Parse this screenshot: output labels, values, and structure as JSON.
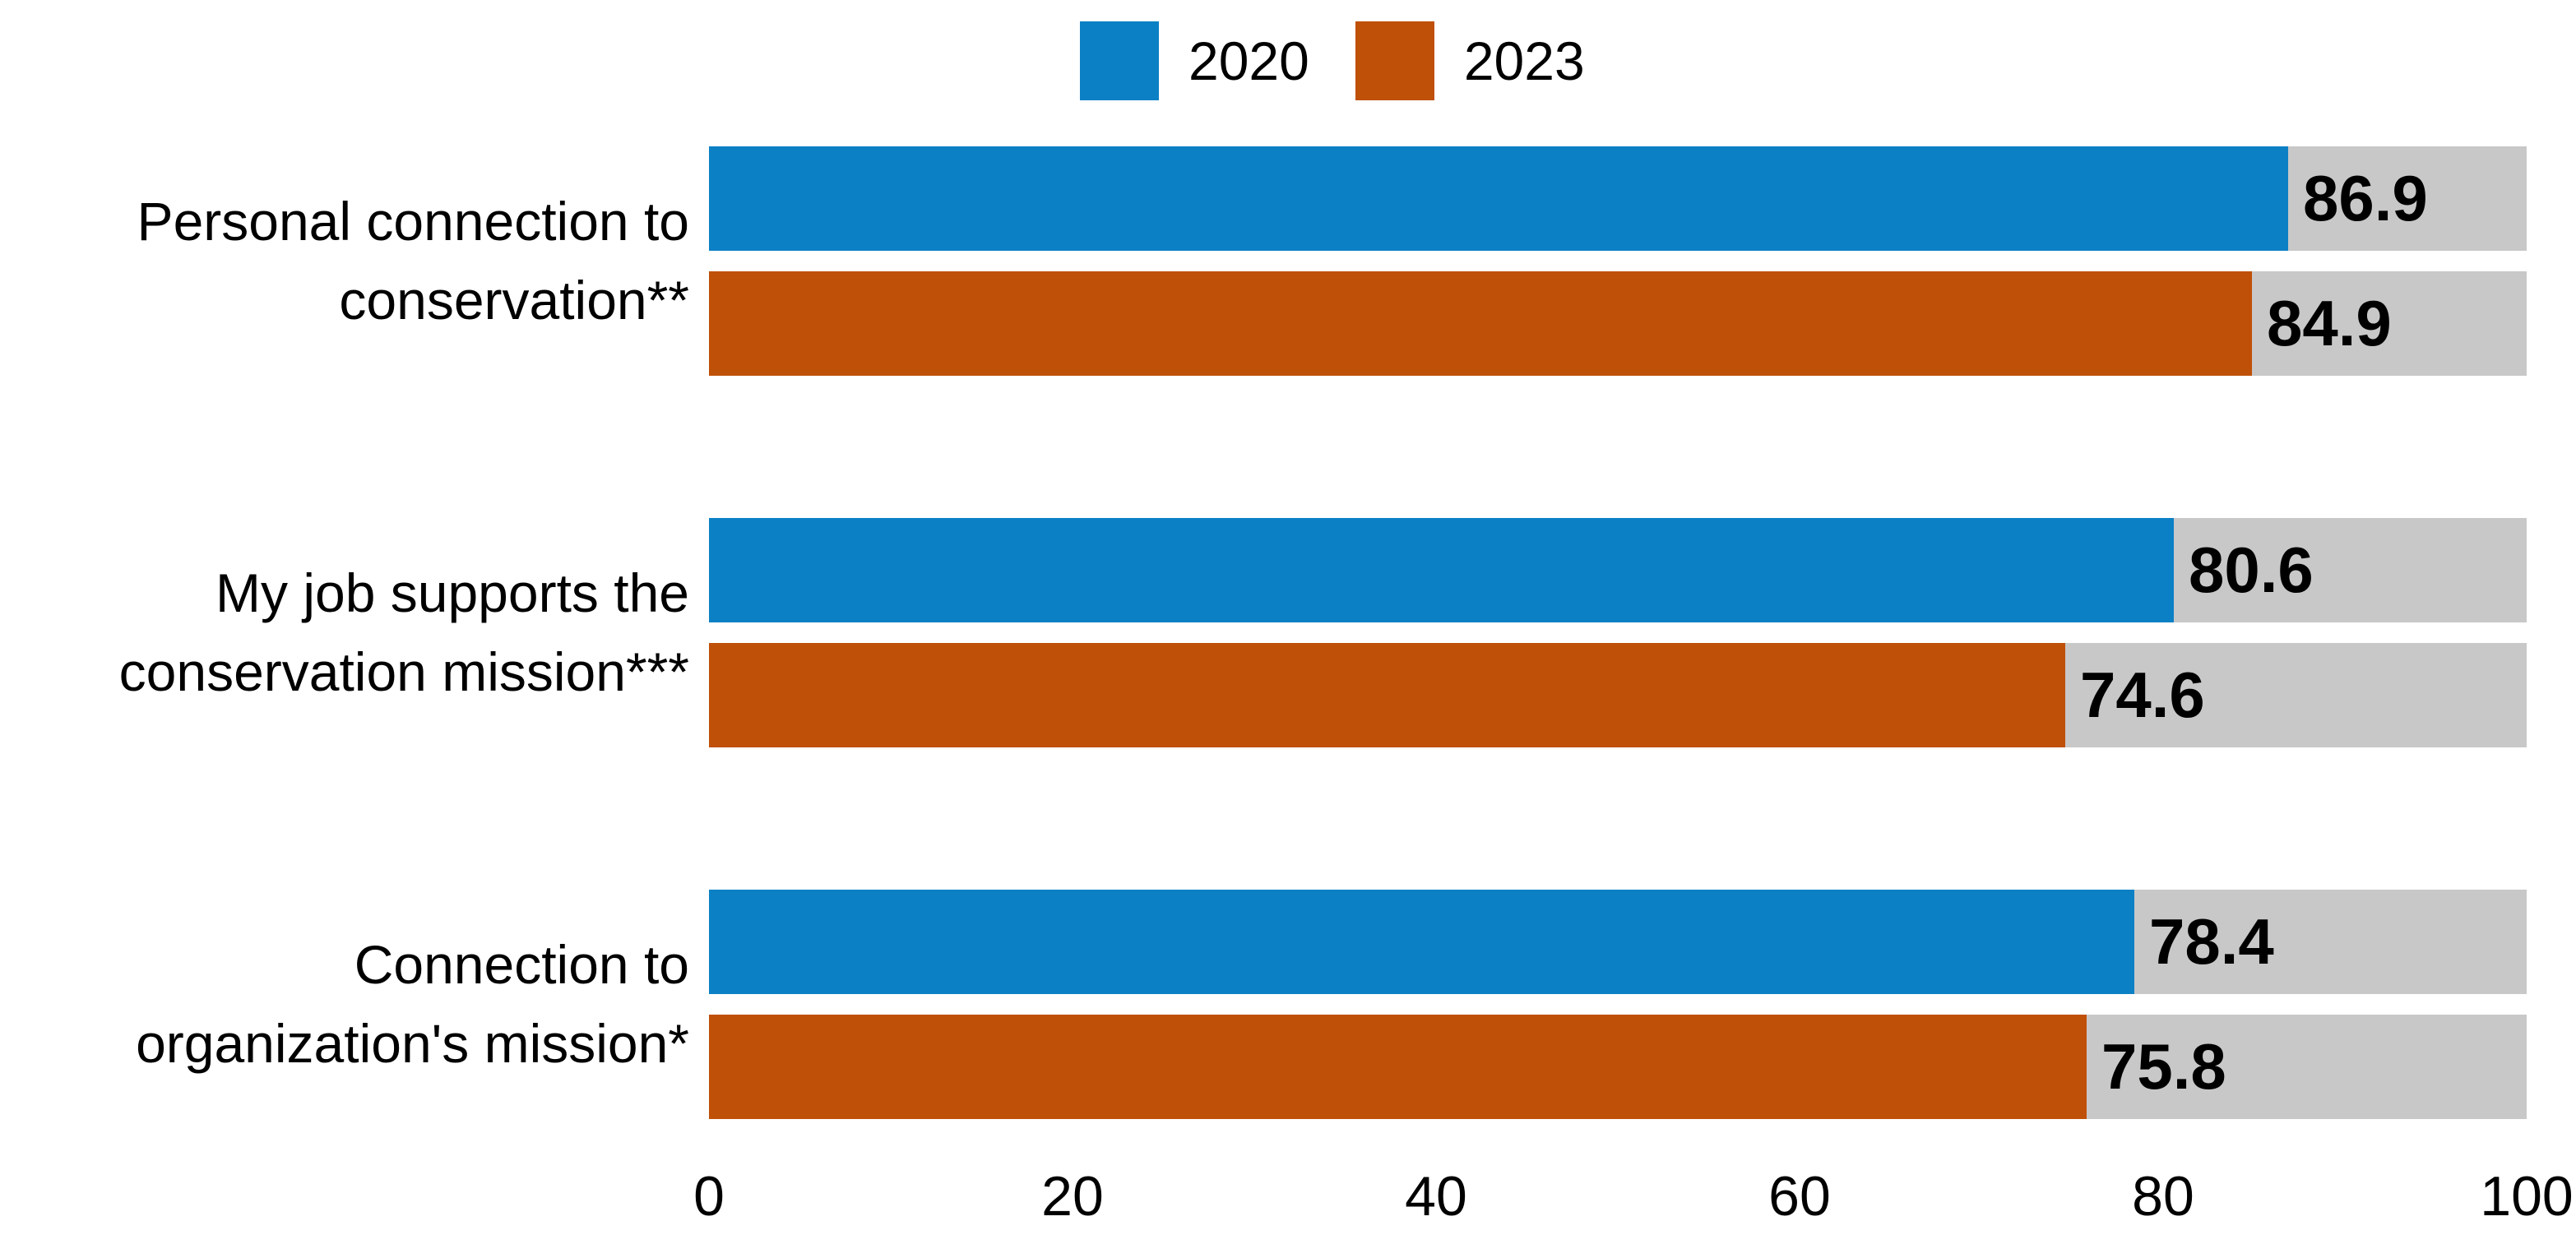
{
  "colors": {
    "series_2020": "#0c80c5",
    "series_2023": "#bf5008",
    "track": "#c8c8c8",
    "text": "#000000",
    "background": "#ffffff"
  },
  "legend": {
    "items": [
      {
        "label": "2020",
        "color": "#0c80c5"
      },
      {
        "label": "2023",
        "color": "#bf5008"
      }
    ]
  },
  "chart_data": {
    "type": "bar",
    "orientation": "horizontal",
    "title": "",
    "xlabel": "",
    "ylabel": "",
    "categories": [
      "Personal connection to conservation**",
      "My job supports the conservation mission***",
      "Connection to organization's mission*"
    ],
    "series": [
      {
        "name": "2020",
        "color": "#0c80c5",
        "values": [
          86.9,
          80.6,
          78.4
        ]
      },
      {
        "name": "2023",
        "color": "#bf5008",
        "values": [
          84.9,
          74.6,
          75.8
        ]
      }
    ],
    "value_labels": [
      "86.9",
      "84.9",
      "80.6",
      "74.6",
      "78.4",
      "75.8"
    ],
    "xlim": [
      0,
      100
    ],
    "xticks": [
      "0",
      "20",
      "40",
      "60",
      "80",
      "100"
    ],
    "grid": false,
    "legend_position": "top-center",
    "track_to_max": true
  }
}
